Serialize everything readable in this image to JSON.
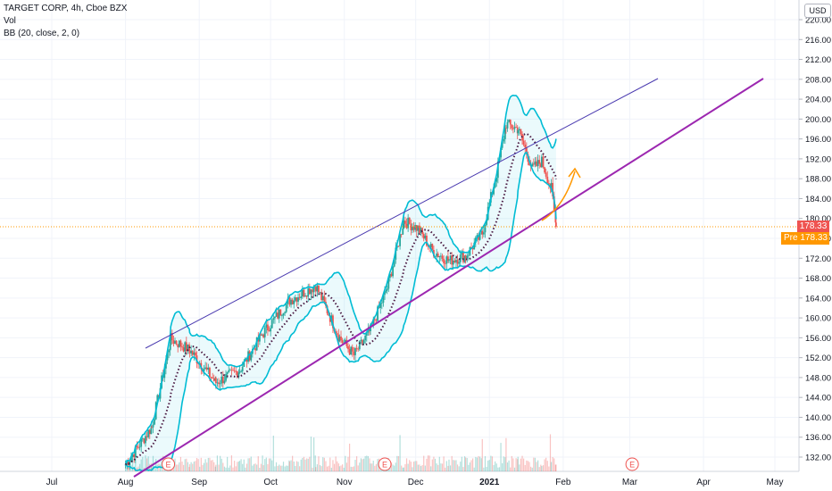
{
  "legend": {
    "symbol": "TARGET CORP, 4h, Cboe BZX",
    "volume": "Vol",
    "indicator": "BB (20, close, 2, 0)"
  },
  "currency": "USD",
  "price_label": "178.33",
  "pre_label": "Pre",
  "pre_price": "178.33",
  "earnings_marker": "E",
  "colors": {
    "up": "#26a69a",
    "down": "#ef5350",
    "band": "#00bcd4",
    "basis": "#4a1942",
    "upper_trendline": "#4b3bb0",
    "lower_trendline": "#9c27b0",
    "arrow": "#ff9800",
    "price_line": "#ff9800"
  },
  "chart_data": {
    "type": "candlestick",
    "x_tick_labels": [
      "Jul",
      "Aug",
      "Sep",
      "Oct",
      "Nov",
      "Dec",
      "2021",
      "Feb",
      "Mar",
      "Apr",
      "May"
    ],
    "y_tick_labels": [
      "132.00",
      "136.00",
      "140.00",
      "144.00",
      "148.00",
      "152.00",
      "156.00",
      "160.00",
      "164.00",
      "168.00",
      "172.00",
      "176.00",
      "180.00",
      "184.00",
      "188.00",
      "192.00",
      "196.00",
      "200.00",
      "204.00",
      "208.00",
      "212.00",
      "216.00",
      "220.00"
    ],
    "ylim": [
      130,
      221
    ],
    "last_price": 178.33,
    "series": [
      {
        "name": "BB (20, close, 2, 0)",
        "points": [
          {
            "date": "2020-08-01",
            "close": 130.5
          },
          {
            "date": "2020-08-12",
            "close": 138.0
          },
          {
            "date": "2020-08-20",
            "close": 155.8
          },
          {
            "date": "2020-08-28",
            "close": 153.5
          },
          {
            "date": "2020-09-08",
            "close": 147.0
          },
          {
            "date": "2020-09-18",
            "close": 149.5
          },
          {
            "date": "2020-09-28",
            "close": 157.0
          },
          {
            "date": "2020-10-09",
            "close": 163.5
          },
          {
            "date": "2020-10-20",
            "close": 166.5
          },
          {
            "date": "2020-10-30",
            "close": 156.0
          },
          {
            "date": "2020-11-05",
            "close": 152.5
          },
          {
            "date": "2020-11-12",
            "close": 157.5
          },
          {
            "date": "2020-11-19",
            "close": 166.0
          },
          {
            "date": "2020-11-26",
            "close": 179.5
          },
          {
            "date": "2020-12-02",
            "close": 178.0
          },
          {
            "date": "2020-12-08",
            "close": 173.5
          },
          {
            "date": "2020-12-15",
            "close": 171.5
          },
          {
            "date": "2020-12-22",
            "close": 172.5
          },
          {
            "date": "2020-12-29",
            "close": 177.0
          },
          {
            "date": "2021-01-04",
            "close": 189.0
          },
          {
            "date": "2021-01-08",
            "close": 199.0
          },
          {
            "date": "2021-01-13",
            "close": 198.0
          },
          {
            "date": "2021-01-19",
            "close": 190.0
          },
          {
            "date": "2021-01-23",
            "close": 191.5
          },
          {
            "date": "2021-01-27",
            "close": 186.0
          },
          {
            "date": "2021-01-29",
            "close": 178.33
          }
        ]
      }
    ]
  }
}
